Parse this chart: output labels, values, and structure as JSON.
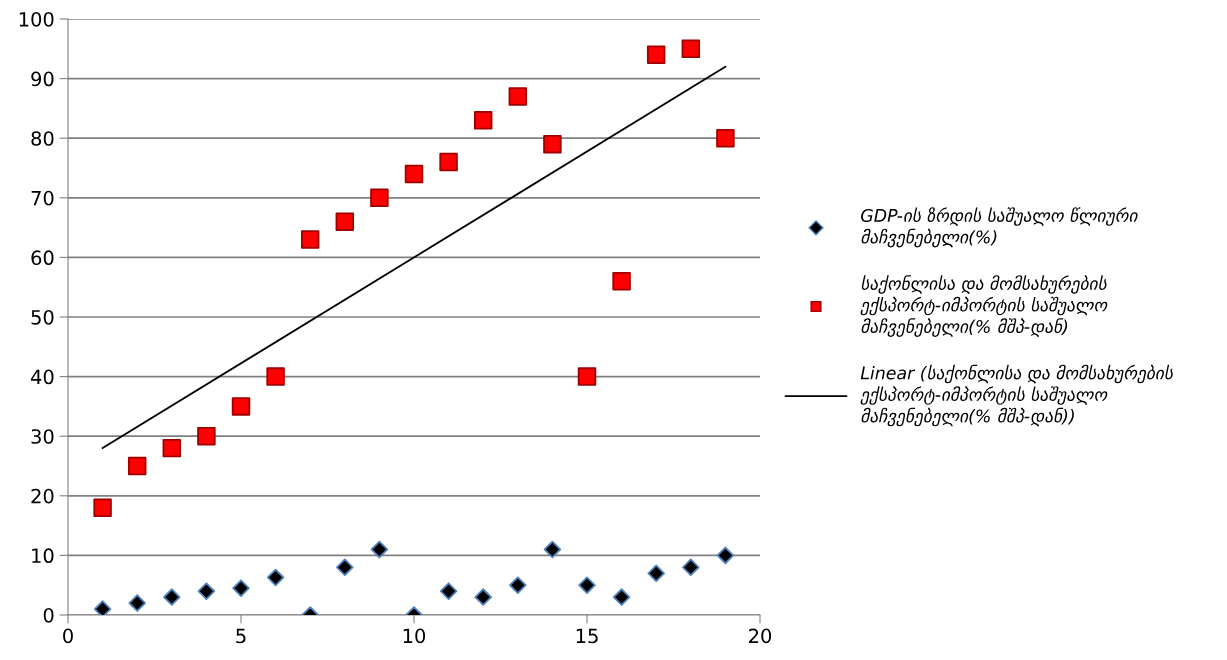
{
  "chart_data": {
    "type": "scatter",
    "x": [
      1,
      2,
      3,
      4,
      5,
      6,
      7,
      8,
      9,
      10,
      11,
      12,
      13,
      14,
      15,
      16,
      17,
      18,
      19
    ],
    "series": [
      {
        "name": "GDP-ის ზრდის საშუალო წლიური მაჩვენებელი(%)",
        "color": "#000000",
        "marker": "diamond",
        "values": [
          1,
          2,
          3,
          4,
          4.5,
          6.3,
          0,
          8,
          11,
          0,
          4,
          3,
          5,
          11,
          5,
          3,
          7,
          8,
          10
        ]
      },
      {
        "name": "საქონლისა და მომსახურების ექსპორტ-იმპორტის საშუალო მაჩვენებელი(% მშპ-დან)",
        "color": "#ff0000",
        "marker": "square",
        "values": [
          18,
          25,
          28,
          30,
          35,
          40,
          63,
          66,
          70,
          74,
          76,
          83,
          87,
          79,
          40,
          56,
          94,
          95,
          80
        ]
      },
      {
        "name": "Linear (საქონლისა და მომსახურების ექსპორტ-იმპორტის საშუალო მაჩვენებელი(% მშპ-დან))",
        "type": "line",
        "color": "#000000",
        "marker": "none",
        "line_style": "solid",
        "x": [
          1,
          19
        ],
        "values": [
          28,
          92
        ]
      }
    ],
    "xlim": [
      0,
      20
    ],
    "xticks": [
      0,
      5,
      10,
      15,
      20
    ],
    "ylim": [
      0,
      100
    ],
    "yticks": [
      0,
      10,
      20,
      30,
      40,
      50,
      60,
      70,
      80,
      90,
      100
    ],
    "grid": "y",
    "legend": "right"
  }
}
